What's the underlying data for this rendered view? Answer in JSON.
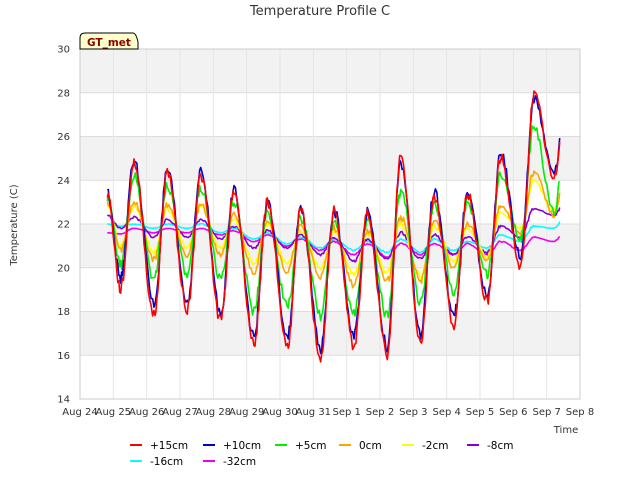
{
  "chart_data": {
    "type": "line",
    "title": "Temperature Profile C",
    "xlabel": "Time",
    "ylabel": "Temperature (C)",
    "badge": "GT_met",
    "ylim": [
      14,
      30
    ],
    "xlim": [
      0,
      15
    ],
    "y_ticks": [
      14,
      16,
      18,
      20,
      22,
      24,
      26,
      28,
      30
    ],
    "x_ticks": [
      {
        "x": 0,
        "label": "Aug 24"
      },
      {
        "x": 1,
        "label": "Aug 25"
      },
      {
        "x": 2,
        "label": "Aug 26"
      },
      {
        "x": 3,
        "label": "Aug 27"
      },
      {
        "x": 4,
        "label": "Aug 28"
      },
      {
        "x": 5,
        "label": "Aug 29"
      },
      {
        "x": 6,
        "label": "Aug 30"
      },
      {
        "x": 7,
        "label": "Aug 31"
      },
      {
        "x": 8,
        "label": "Sep 1"
      },
      {
        "x": 9,
        "label": "Sep 2"
      },
      {
        "x": 10,
        "label": "Sep 3"
      },
      {
        "x": 11,
        "label": "Sep 4"
      },
      {
        "x": 12,
        "label": "Sep 5"
      },
      {
        "x": 13,
        "label": "Sep 6"
      },
      {
        "x": 14,
        "label": "Sep 7"
      },
      {
        "x": 15,
        "label": "Sep 8"
      }
    ],
    "x_units": "days since Aug 24",
    "days": [
      0.2,
      1,
      2,
      3,
      4,
      5,
      6,
      7,
      8,
      9,
      10,
      11,
      12,
      13,
      14,
      14.35
    ],
    "daily_min_max_by_depth": [
      {
        "name": "+15cm",
        "color": "#ff0000",
        "min": [
          null,
          19.0,
          17.8,
          18.1,
          17.6,
          16.5,
          16.4,
          15.9,
          16.4,
          16.0,
          16.6,
          17.4,
          18.5,
          20.0,
          24.0,
          null
        ],
        "max": [
          23.4,
          24.8,
          24.4,
          24.2,
          23.5,
          23.0,
          22.6,
          22.6,
          22.5,
          25.1,
          23.3,
          23.4,
          25.0,
          27.9,
          28.9,
          24.0
        ]
      },
      {
        "name": "+10cm",
        "color": "#0000cc",
        "min": [
          null,
          19.5,
          18.3,
          18.4,
          17.9,
          16.8,
          16.8,
          16.3,
          16.9,
          16.4,
          16.9,
          17.8,
          18.7,
          20.5,
          24.3,
          null
        ],
        "max": [
          23.5,
          24.9,
          24.4,
          24.4,
          23.6,
          23.0,
          22.6,
          22.6,
          22.6,
          24.8,
          23.5,
          23.4,
          25.2,
          27.7,
          28.3,
          24.7
        ]
      },
      {
        "name": "+5cm",
        "color": "#00ee00",
        "min": [
          null,
          20.1,
          19.5,
          19.6,
          19.5,
          18.0,
          18.2,
          17.8,
          17.9,
          17.8,
          18.4,
          18.9,
          19.7,
          21.3,
          22.5,
          null
        ],
        "max": [
          23.2,
          24.2,
          23.8,
          23.7,
          23.0,
          22.6,
          22.3,
          22.2,
          22.1,
          23.5,
          22.9,
          22.9,
          24.2,
          26.5,
          26.7,
          24.6
        ]
      },
      {
        "name": "0cm",
        "color": "#ffa500",
        "min": [
          null,
          20.8,
          20.4,
          20.6,
          20.6,
          19.8,
          19.8,
          19.6,
          19.2,
          19.4,
          19.4,
          20.0,
          20.3,
          21.6,
          22.4,
          null
        ],
        "max": [
          23.0,
          23.0,
          22.9,
          22.9,
          22.4,
          22.2,
          21.9,
          21.8,
          21.7,
          22.3,
          22.2,
          22.0,
          22.8,
          24.4,
          25.0,
          24.2
        ]
      },
      {
        "name": "-2cm",
        "color": "#ffff00",
        "min": [
          null,
          21.0,
          20.7,
          20.9,
          20.9,
          20.2,
          20.2,
          20.0,
          19.7,
          19.8,
          19.6,
          20.3,
          20.5,
          21.8,
          22.6,
          null
        ],
        "max": [
          22.9,
          22.8,
          22.7,
          22.8,
          22.2,
          22.0,
          21.7,
          21.6,
          21.5,
          22.0,
          21.9,
          21.8,
          22.5,
          24.0,
          24.6,
          24.0
        ]
      },
      {
        "name": "-8cm",
        "color": "#8800cc",
        "min": [
          null,
          21.8,
          21.4,
          21.4,
          21.3,
          20.9,
          20.9,
          20.6,
          20.3,
          20.4,
          20.4,
          20.6,
          20.7,
          21.4,
          22.4,
          null
        ],
        "max": [
          22.4,
          22.3,
          22.2,
          22.2,
          21.9,
          21.7,
          21.5,
          21.4,
          21.3,
          21.6,
          21.5,
          21.4,
          21.9,
          22.7,
          23.3,
          23.4
        ]
      },
      {
        "name": "-16cm",
        "color": "#00ffff",
        "min": [
          null,
          21.9,
          21.8,
          21.8,
          21.6,
          21.3,
          21.1,
          20.9,
          20.8,
          20.7,
          20.7,
          20.8,
          20.9,
          21.2,
          21.8,
          null
        ],
        "max": [
          22.0,
          22.0,
          22.0,
          22.0,
          21.8,
          21.6,
          21.4,
          21.3,
          21.2,
          21.3,
          21.3,
          21.2,
          21.5,
          21.9,
          22.5,
          22.7
        ]
      },
      {
        "name": "-32cm",
        "color": "#ee00ee",
        "min": [
          null,
          21.55,
          21.6,
          21.6,
          21.5,
          21.2,
          21.0,
          20.8,
          20.6,
          20.5,
          20.6,
          20.6,
          20.6,
          20.8,
          21.2,
          null
        ],
        "max": [
          21.6,
          21.8,
          21.8,
          21.8,
          21.7,
          21.5,
          21.3,
          21.2,
          21.1,
          21.1,
          21.1,
          21.1,
          21.2,
          21.4,
          21.8,
          21.9
        ]
      }
    ],
    "legend_placement": "bottom-center",
    "grid": true
  }
}
